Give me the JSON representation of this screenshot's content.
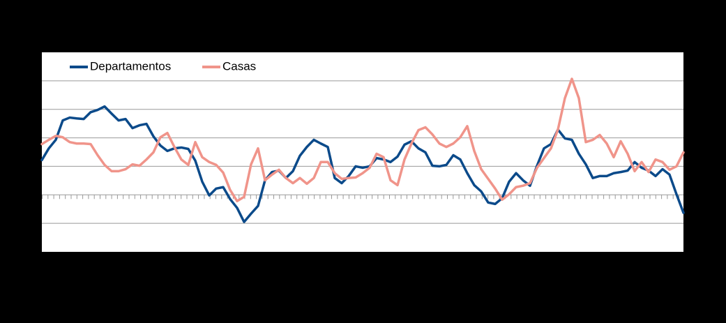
{
  "chart_data": {
    "type": "line",
    "categories": [
      null,
      null,
      null,
      null,
      null,
      null,
      null,
      null,
      null,
      null,
      null,
      null,
      null,
      null,
      null,
      null,
      null,
      null,
      null,
      null,
      null,
      null,
      null,
      null,
      null,
      null,
      null,
      null,
      null,
      null,
      null,
      null,
      null,
      null,
      null,
      null,
      null,
      null,
      null,
      null,
      null,
      null,
      null,
      null,
      null,
      null,
      null,
      null,
      null,
      null,
      null,
      null,
      null,
      null,
      null,
      null,
      null,
      null,
      null,
      null,
      null,
      null,
      null,
      null,
      null,
      null,
      null,
      null,
      null,
      null,
      null,
      null,
      null,
      null,
      null,
      null,
      null,
      null,
      null,
      null,
      null,
      null,
      null,
      null,
      null,
      null,
      null,
      null,
      null,
      null,
      null,
      null,
      null
    ],
    "series": [
      {
        "name": "Departamentos",
        "color": "#0b4a8a",
        "values": [
          12.2,
          16.3,
          19.3,
          26.1,
          27.1,
          26.8,
          26.6,
          29,
          29.8,
          31,
          28.5,
          26.1,
          26.6,
          23.4,
          24.4,
          24.9,
          20.5,
          17.3,
          15.4,
          16.3,
          16.6,
          16.1,
          12,
          4.6,
          -0.2,
          2.2,
          2.7,
          -1.5,
          -4.6,
          -9.5,
          -6.6,
          -3.9,
          5.1,
          8,
          8.5,
          5.9,
          8.3,
          13.7,
          16.8,
          19.3,
          18,
          16.8,
          5.9,
          4.1,
          6.6,
          10,
          9.5,
          10,
          12.9,
          12.4,
          11.5,
          13.4,
          17.6,
          18.8,
          16.3,
          14.9,
          10.2,
          10,
          10.5,
          13.9,
          12.4,
          7.6,
          3.4,
          1.2,
          -2.7,
          -3.2,
          -1.2,
          4.6,
          7.6,
          5.1,
          3.2,
          10.2,
          16.3,
          17.8,
          22.9,
          19.8,
          19.3,
          14.4,
          10.7,
          5.9,
          6.6,
          6.6,
          7.6,
          8,
          8.5,
          11.5,
          9.5,
          8.5,
          6.6,
          9,
          7.1,
          0.2,
          -6.3
        ]
      },
      {
        "name": "Casas",
        "color": "#f0948a",
        "values": [
          17.8,
          19.3,
          20.7,
          20.2,
          18.5,
          18,
          18,
          17.8,
          13.9,
          10.5,
          8.3,
          8.3,
          9,
          10.7,
          10.2,
          12.4,
          14.9,
          20.2,
          21.7,
          16.8,
          12.4,
          10.5,
          18.5,
          13.2,
          11.5,
          10.5,
          7.8,
          1.7,
          -2.2,
          -0.7,
          10.7,
          16.3,
          5.1,
          7.1,
          8.8,
          5.9,
          4.1,
          5.9,
          3.9,
          5.9,
          11.5,
          11.5,
          7.6,
          5.6,
          5.9,
          6.1,
          7.6,
          9.5,
          14.4,
          13.2,
          5.1,
          3.4,
          12.4,
          18,
          22.7,
          23.7,
          21.2,
          18,
          16.8,
          18,
          20.2,
          24.1,
          15.4,
          9,
          5.6,
          2.2,
          -1.7,
          0.2,
          2.7,
          3.2,
          4.1,
          9.5,
          12.9,
          16.3,
          22.9,
          33.9,
          40.7,
          33.9,
          18.5,
          19.3,
          21,
          18,
          13.2,
          18.8,
          14.4,
          8.3,
          11.5,
          8,
          12.4,
          11.5,
          8.8,
          10,
          14.9
        ]
      }
    ],
    "ylim": [
      -20,
      50
    ],
    "yticks": [
      -20,
      -10,
      0,
      10,
      20,
      30,
      40,
      50
    ],
    "grid": true
  }
}
